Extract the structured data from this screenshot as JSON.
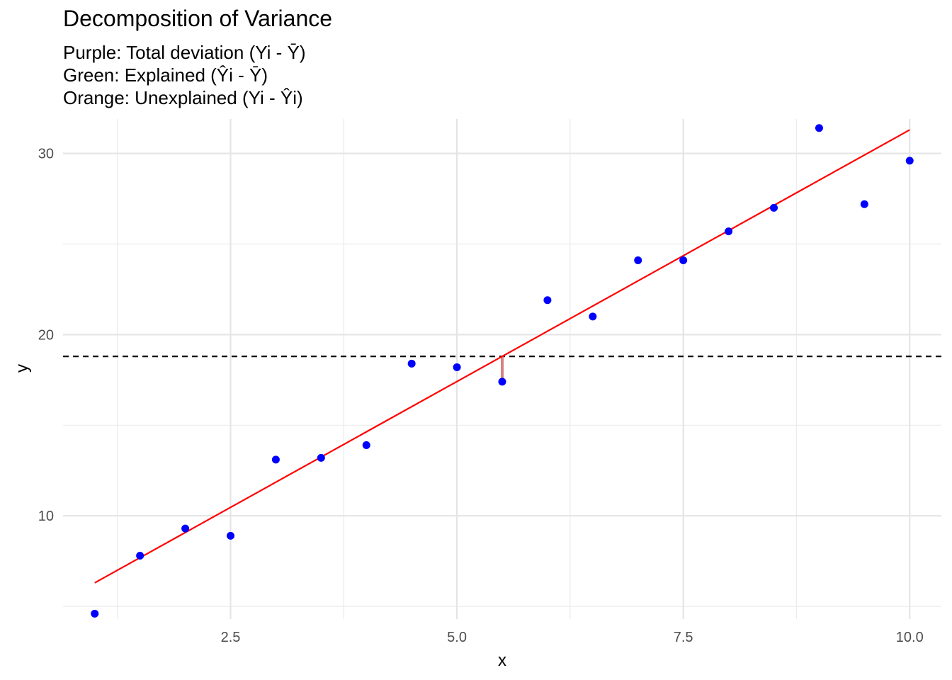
{
  "chart_data": {
    "type": "scatter",
    "title": "Decomposition of Variance",
    "subtitle_lines": [
      "Purple: Total deviation (Yi - Ȳ)",
      "Green: Explained (Ŷi - Ȳ)",
      "Orange: Unexplained (Yi - Ŷi)"
    ],
    "xlabel": "x",
    "ylabel": "y",
    "xlim": [
      0.65,
      10.35
    ],
    "ylim": [
      4.3,
      31.9
    ],
    "x_ticks": [
      2.5,
      5.0,
      7.5,
      10.0
    ],
    "x_tick_labels": [
      "2.5",
      "5.0",
      "7.5",
      "10.0"
    ],
    "y_ticks": [
      10,
      20,
      30
    ],
    "y_tick_labels": [
      "10",
      "20",
      "30"
    ],
    "grid": true,
    "points": {
      "color": "#0000ff",
      "x": [
        1.0,
        1.5,
        2.0,
        2.5,
        3.0,
        3.5,
        4.0,
        4.5,
        5.0,
        5.5,
        6.0,
        6.5,
        7.0,
        7.5,
        8.0,
        8.5,
        9.0,
        9.5,
        10.0
      ],
      "y": [
        4.6,
        7.8,
        9.3,
        8.9,
        13.1,
        13.2,
        13.9,
        18.4,
        18.2,
        17.4,
        21.9,
        21.0,
        24.1,
        24.1,
        25.7,
        27.0,
        31.4,
        27.2,
        29.6
      ]
    },
    "regression_line": {
      "color": "#ff0000",
      "x": [
        1.0,
        10.0
      ],
      "y": [
        6.3,
        31.3
      ]
    },
    "mean_line": {
      "color": "#000000",
      "style": "dashed",
      "y": 18.8
    },
    "highlight_segment": {
      "color": "#d98080",
      "x": 5.5,
      "y_from": 17.4,
      "y_to": 18.8
    }
  }
}
